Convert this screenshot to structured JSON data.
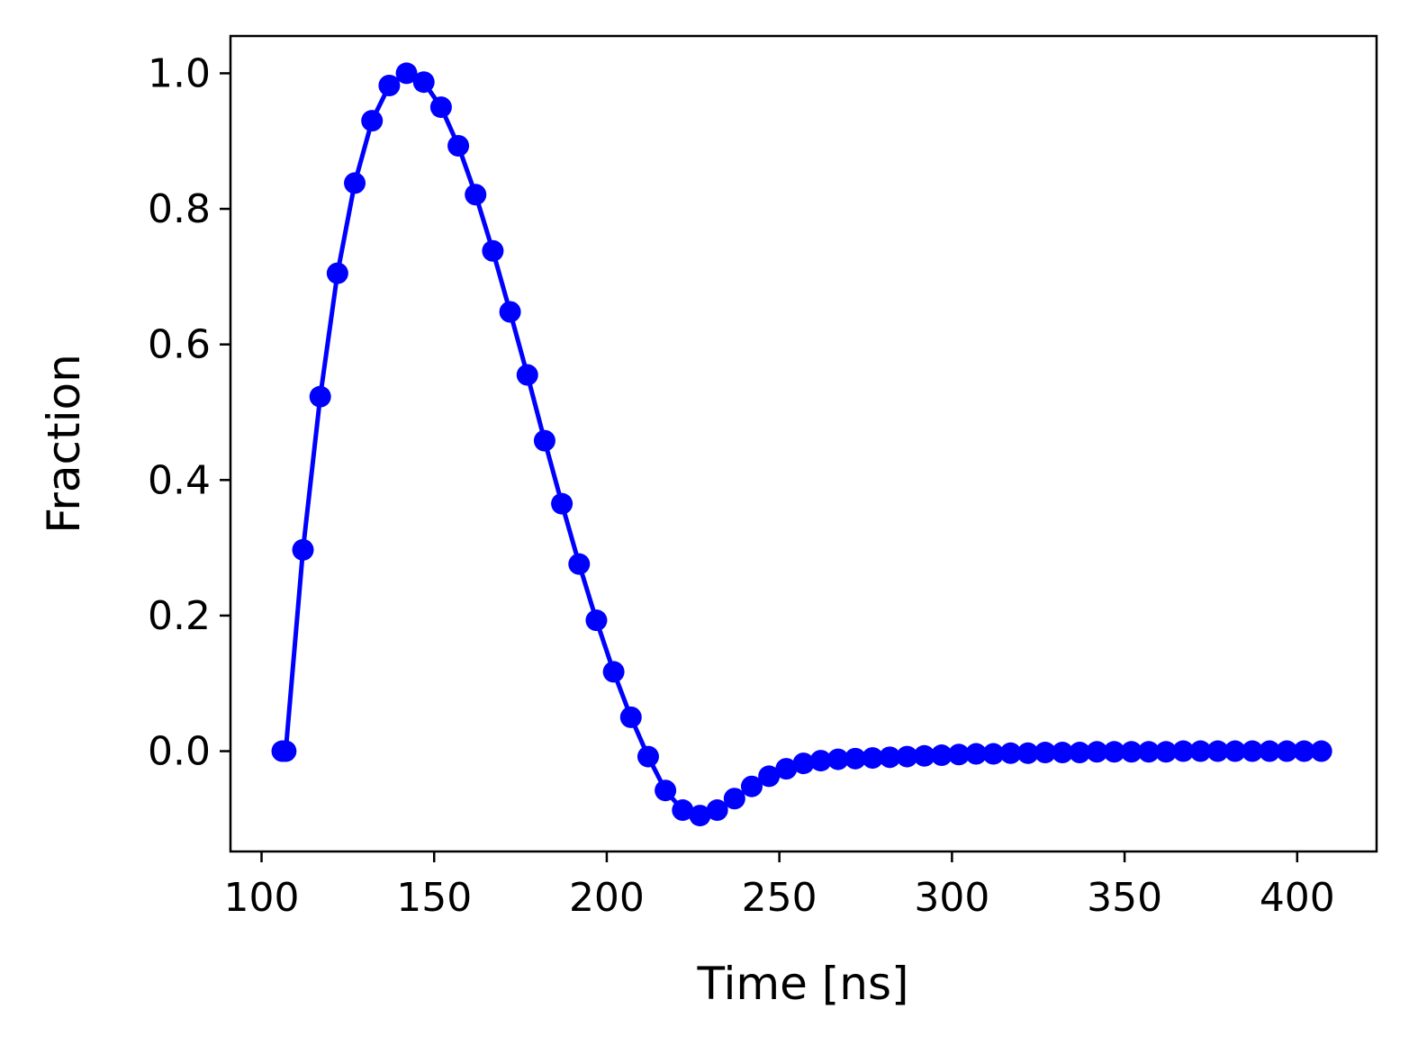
{
  "chart_data": {
    "type": "line",
    "title": "",
    "xlabel": "Time [ns]",
    "ylabel": "Fraction",
    "xlim": [
      91,
      423
    ],
    "ylim": [
      -0.148,
      1.055
    ],
    "xticks": [
      100,
      150,
      200,
      250,
      300,
      350,
      400
    ],
    "xtick_labels": [
      "100",
      "150",
      "200",
      "250",
      "300",
      "350",
      "400"
    ],
    "yticks": [
      0.0,
      0.2,
      0.4,
      0.6,
      0.8,
      1.0
    ],
    "ytick_labels": [
      "0.0",
      "0.2",
      "0.4",
      "0.6",
      "0.8",
      "1.0"
    ],
    "grid": false,
    "legend": "none",
    "series": [
      {
        "color": "#0000ff",
        "marker": "circle",
        "x": [
          106,
          107,
          112,
          117,
          122,
          127,
          132,
          137,
          142,
          147,
          152,
          157,
          162,
          167,
          172,
          177,
          182,
          187,
          192,
          197,
          202,
          207,
          212,
          217,
          222,
          227,
          232,
          237,
          242,
          247,
          252,
          257,
          262,
          267,
          272,
          277,
          282,
          287,
          292,
          297,
          302,
          307,
          312,
          317,
          322,
          327,
          332,
          337,
          342,
          347,
          352,
          357,
          362,
          367,
          372,
          377,
          382,
          387,
          392,
          397,
          402,
          407
        ],
        "y": [
          0.0,
          0.0,
          0.297,
          0.523,
          0.705,
          0.838,
          0.93,
          0.982,
          1.0,
          0.987,
          0.95,
          0.893,
          0.821,
          0.738,
          0.648,
          0.555,
          0.458,
          0.365,
          0.276,
          0.193,
          0.117,
          0.05,
          -0.008,
          -0.058,
          -0.087,
          -0.095,
          -0.087,
          -0.07,
          -0.052,
          -0.037,
          -0.026,
          -0.018,
          -0.014,
          -0.012,
          -0.011,
          -0.01,
          -0.009,
          -0.008,
          -0.007,
          -0.006,
          -0.005,
          -0.004,
          -0.004,
          -0.003,
          -0.003,
          -0.002,
          -0.002,
          -0.002,
          -0.001,
          -0.001,
          -0.001,
          -0.001,
          -0.001,
          0.0,
          0.0,
          0.0,
          0.0,
          0.0,
          0.0,
          0.0,
          0.0,
          0.0
        ]
      }
    ]
  }
}
